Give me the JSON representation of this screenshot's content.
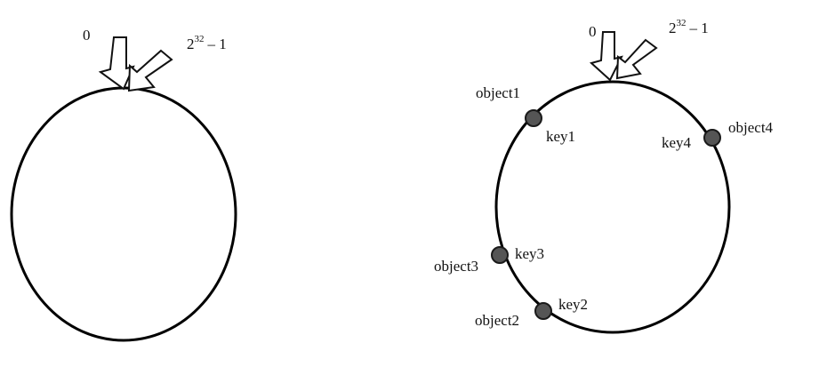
{
  "left_diagram": {
    "start_label": "0",
    "end_base": "2",
    "end_exponent": "32",
    "end_suffix": "– 1"
  },
  "right_diagram": {
    "start_label": "0",
    "end_base": "2",
    "end_exponent": "32",
    "end_suffix": "– 1",
    "nodes": [
      {
        "object": "object1",
        "key": "key1"
      },
      {
        "object": "object4",
        "key": "key4"
      },
      {
        "object": "object3",
        "key": "key3"
      },
      {
        "object": "object2",
        "key": "key2"
      }
    ]
  }
}
